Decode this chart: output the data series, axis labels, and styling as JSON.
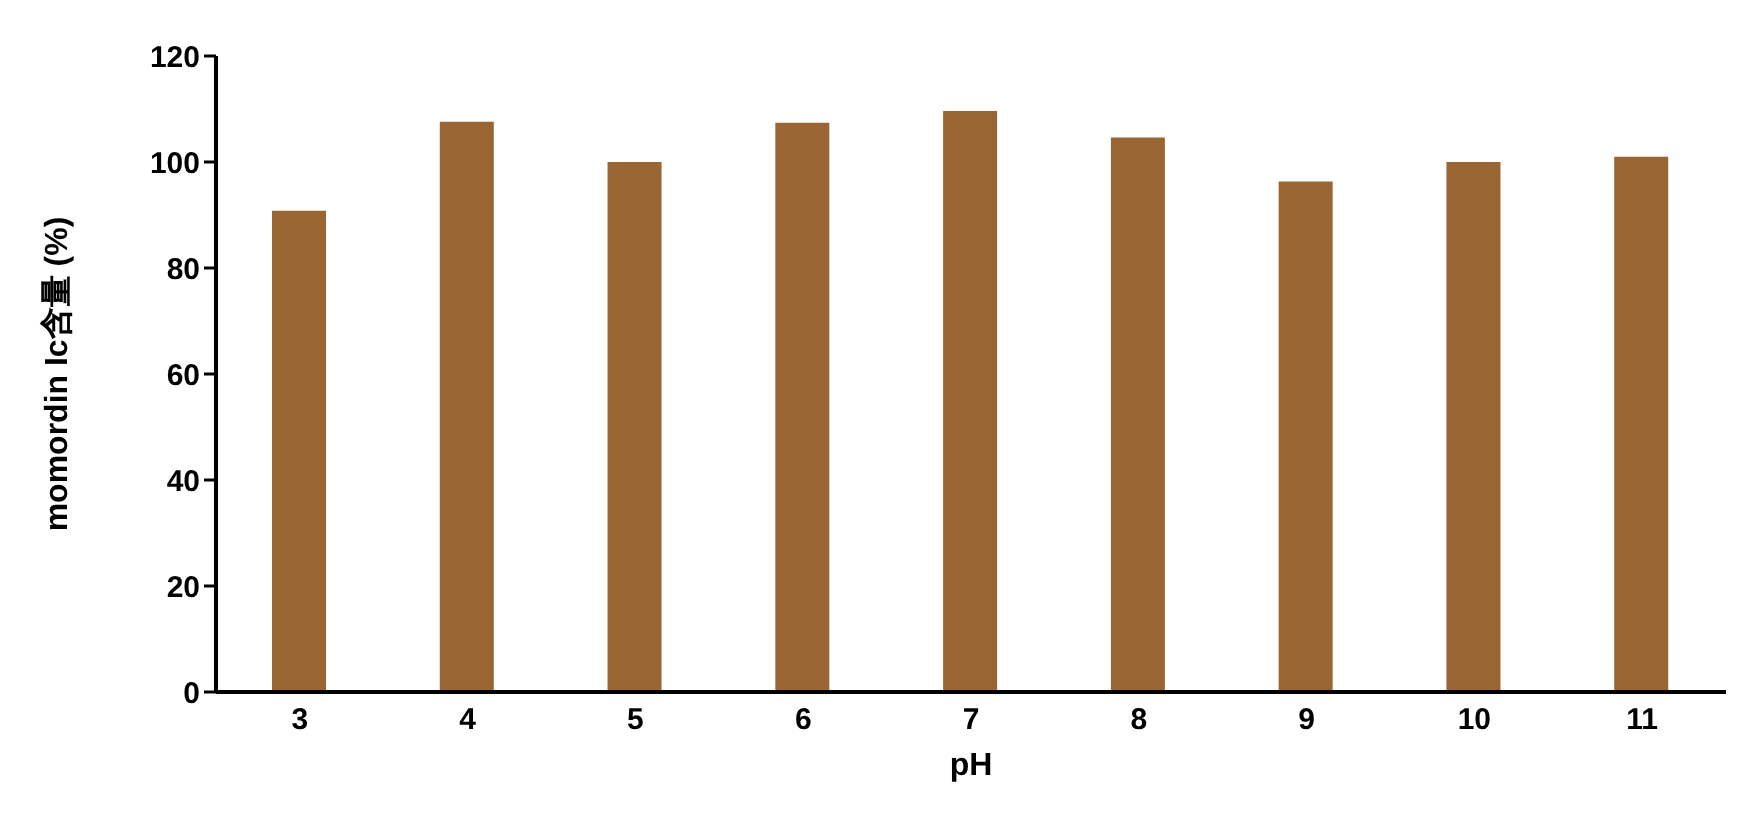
{
  "chart_data": {
    "type": "bar",
    "xlabel": "pH",
    "ylabel": "momordin Ic含量 (%)",
    "categories": [
      "3",
      "4",
      "5",
      "6",
      "7",
      "8",
      "9",
      "10",
      "11"
    ],
    "values": [
      90.8,
      107.6,
      100,
      107.4,
      109.6,
      104.6,
      96.3,
      100,
      101
    ],
    "color": "#996633",
    "ylim": [
      0,
      120
    ],
    "yticks": [
      0,
      20,
      40,
      60,
      80,
      100,
      120
    ],
    "grid": false,
    "legend": false
  }
}
